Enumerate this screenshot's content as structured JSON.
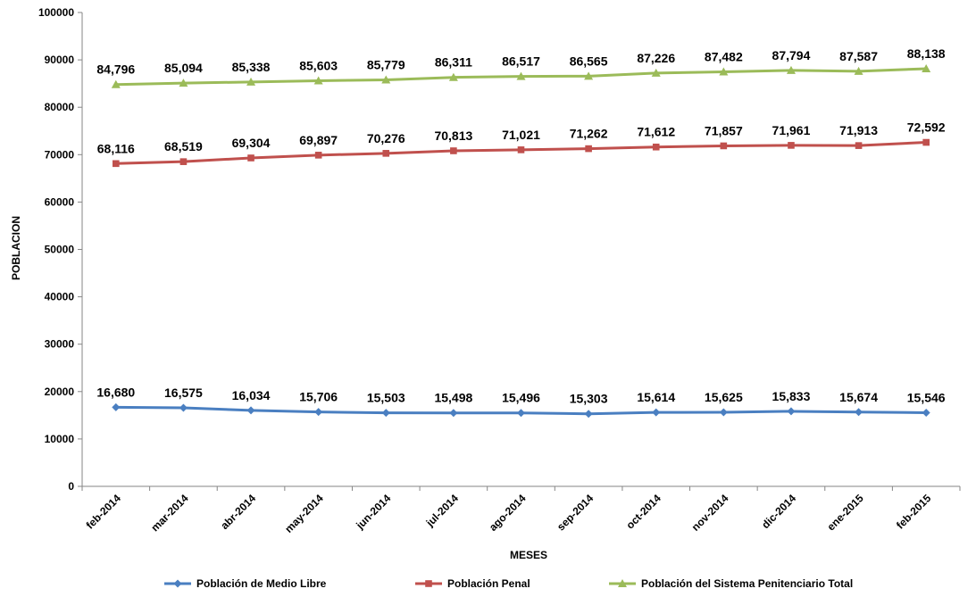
{
  "chart_data": {
    "type": "line",
    "title": "",
    "xlabel": "MESES",
    "ylabel": "POBLACION",
    "ylim": [
      0,
      100000
    ],
    "yticks": [
      0,
      10000,
      20000,
      30000,
      40000,
      50000,
      60000,
      70000,
      80000,
      90000,
      100000
    ],
    "grid": false,
    "legend_position": "bottom",
    "categories": [
      "feb-2014",
      "mar-2014",
      "abr-2014",
      "may-2014",
      "jun-2014",
      "jul-2014",
      "ago-2014",
      "sep-2014",
      "oct-2014",
      "nov-2014",
      "dic-2014",
      "ene-2015",
      "feb-2015"
    ],
    "series": [
      {
        "name": "Población de Medio Libre",
        "color": "#4a7fc1",
        "marker": "diamond",
        "values": [
          16680,
          16575,
          16034,
          15706,
          15503,
          15498,
          15496,
          15303,
          15614,
          15625,
          15833,
          15674,
          15546
        ],
        "labels": [
          "16,680",
          "16,575",
          "16,034",
          "15,706",
          "15,503",
          "15,498",
          "15,496",
          "15,303",
          "15,614",
          "15,625",
          "15,833",
          "15,674",
          "15,546"
        ]
      },
      {
        "name": "Población Penal",
        "color": "#c0504d",
        "marker": "square",
        "values": [
          68116,
          68519,
          69304,
          69897,
          70276,
          70813,
          71021,
          71262,
          71612,
          71857,
          71961,
          71913,
          72592
        ],
        "labels": [
          "68,116",
          "68,519",
          "69,304",
          "69,897",
          "70,276",
          "70,813",
          "71,021",
          "71,262",
          "71,612",
          "71,857",
          "71,961",
          "71,913",
          "72,592"
        ]
      },
      {
        "name": "Población del Sistema Penitenciario Total",
        "color": "#9bbb59",
        "marker": "triangle",
        "values": [
          84796,
          85094,
          85338,
          85603,
          85779,
          86311,
          86517,
          86565,
          87226,
          87482,
          87794,
          87587,
          88138
        ],
        "labels": [
          "84,796",
          "85,094",
          "85,338",
          "85,603",
          "85,779",
          "86,311",
          "86,517",
          "86,565",
          "87,226",
          "87,482",
          "87,794",
          "87,587",
          "88,138"
        ]
      }
    ]
  }
}
